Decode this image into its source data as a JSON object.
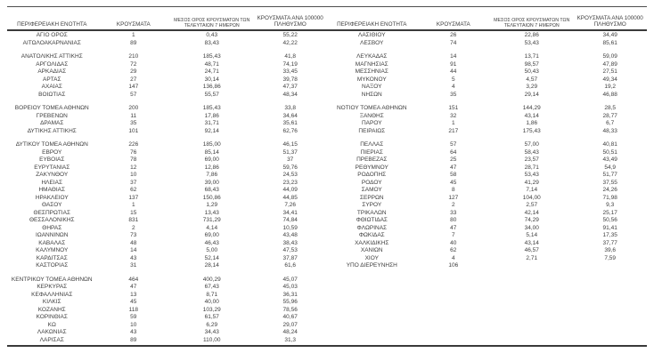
{
  "page": {
    "background": "#ffffff",
    "text_color": "#3d3d3d",
    "rule_color": "#3a3a3a"
  },
  "headers": {
    "region": "ΠΕΡΙΦΕΡΕΙΑΚΗ ΕΝΟΤΗΤΑ",
    "cases": "ΚΡΟΥΣΜΑΤΑ",
    "avg7_line1": "ΜΕΣΟΣ ΟΡΟΣ ΚΡΟΥΣΜΑΤΩΝ ΤΩΝ",
    "avg7_line2": "ΤΕΛΕΥΤΑΙΩΝ 7 ΗΜΕΡΩΝ",
    "per100k_line1": "ΚΡΟΥΣΜΑΤΑ ΑΝΑ 100000",
    "per100k_line2": "ΠΛΗΘΥΣΜΟ"
  },
  "columns": [
    "region",
    "cases",
    "avg7_last7days",
    "per_100000"
  ],
  "left_table": {
    "groups": [
      {
        "rows": [
          [
            "ΑΓΙΟ ΟΡΟΣ",
            "1",
            "0,43",
            "55,22"
          ],
          [
            "ΑΙΤΩΛΟΑΚΑΡΝΑΝΙΑΣ",
            "89",
            "83,43",
            "42,22"
          ]
        ]
      },
      {
        "rows": [
          [
            "ΑΝΑΤΟΛΙΚΗΣ ΑΤΤΙΚΗΣ",
            "210",
            "185,43",
            "41,8"
          ],
          [
            "ΑΡΓΟΛΙΔΑΣ",
            "72",
            "48,71",
            "74,19"
          ],
          [
            "ΑΡΚΑΔΙΑΣ",
            "29",
            "24,71",
            "33,45"
          ],
          [
            "ΑΡΤΑΣ",
            "27",
            "30,14",
            "39,78"
          ],
          [
            "ΑΧΑΪΑΣ",
            "147",
            "136,86",
            "47,37"
          ],
          [
            "ΒΟΙΩΤΙΑΣ",
            "57",
            "55,57",
            "48,34"
          ]
        ]
      },
      {
        "rows": [
          [
            "ΒΟΡΕΙΟΥ ΤΟΜΕΑ ΑΘΗΝΩΝ",
            "200",
            "185,43",
            "33,8"
          ],
          [
            "ΓΡΕΒΕΝΩΝ",
            "11",
            "17,86",
            "34,64"
          ],
          [
            "ΔΡΑΜΑΣ",
            "35",
            "31,71",
            "35,61"
          ],
          [
            "ΔΥΤΙΚΗΣ ΑΤΤΙΚΗΣ",
            "101",
            "92,14",
            "62,76"
          ]
        ]
      },
      {
        "rows": [
          [
            "ΔΥΤΙΚΟΥ ΤΟΜΕΑ ΑΘΗΝΩΝ",
            "226",
            "185,00",
            "46,15"
          ],
          [
            "ΕΒΡΟΥ",
            "76",
            "85,14",
            "51,37"
          ],
          [
            "ΕΥΒΟΙΑΣ",
            "78",
            "69,00",
            "37"
          ],
          [
            "ΕΥΡΥΤΑΝΙΑΣ",
            "12",
            "12,86",
            "59,76"
          ],
          [
            "ΖΑΚΥΝΘΟΥ",
            "10",
            "7,86",
            "24,53"
          ],
          [
            "ΗΛΕΙΑΣ",
            "37",
            "39,00",
            "23,23"
          ],
          [
            "ΗΜΑΘΙΑΣ",
            "62",
            "68,43",
            "44,09"
          ],
          [
            "ΗΡΑΚΛΕΙΟΥ",
            "137",
            "150,86",
            "44,85"
          ],
          [
            "ΘΑΣΟΥ",
            "1",
            "1,29",
            "7,26"
          ],
          [
            "ΘΕΣΠΡΩΤΙΑΣ",
            "15",
            "13,43",
            "34,41"
          ],
          [
            "ΘΕΣΣΑΛΟΝΙΚΗΣ",
            "831",
            "731,29",
            "74,84"
          ],
          [
            "ΘΗΡΑΣ",
            "2",
            "4,14",
            "10,59"
          ],
          [
            "ΙΩΑΝΝΙΝΩΝ",
            "73",
            "69,00",
            "43,48"
          ],
          [
            "ΚΑΒΑΛΑΣ",
            "48",
            "46,43",
            "38,43"
          ],
          [
            "ΚΑΛΥΜΝΟΥ",
            "14",
            "5,00",
            "47,53"
          ],
          [
            "ΚΑΡΔΙΤΣΑΣ",
            "43",
            "52,14",
            "37,87"
          ],
          [
            "ΚΑΣΤΟΡΙΑΣ",
            "31",
            "28,14",
            "61,6"
          ]
        ]
      },
      {
        "rows": [
          [
            "ΚΕΝΤΡΙΚΟΥ ΤΟΜΕΑ ΑΘΗΝΩΝ",
            "464",
            "400,29",
            "45,07"
          ],
          [
            "ΚΕΡΚΥΡΑΣ",
            "47",
            "67,43",
            "45,03"
          ],
          [
            "ΚΕΦΑΛΛΗΝΙΑΣ",
            "13",
            "8,71",
            "36,31"
          ],
          [
            "ΚΙΛΚΙΣ",
            "45",
            "40,00",
            "55,96"
          ],
          [
            "ΚΟΖΑΝΗΣ",
            "118",
            "103,29",
            "78,56"
          ],
          [
            "ΚΟΡΙΝΘΙΑΣ",
            "59",
            "61,57",
            "40,67"
          ],
          [
            "ΚΩ",
            "10",
            "6,29",
            "29,07"
          ],
          [
            "ΛΑΚΩΝΙΑΣ",
            "43",
            "34,43",
            "48,24"
          ],
          [
            "ΛΑΡΙΣΑΣ",
            "89",
            "110,00",
            "31,3"
          ]
        ]
      }
    ]
  },
  "right_table": {
    "groups": [
      {
        "rows": [
          [
            "ΛΑΣΙΘΙΟΥ",
            "26",
            "22,86",
            "34,49"
          ],
          [
            "ΛΕΣΒΟΥ",
            "74",
            "53,43",
            "85,61"
          ]
        ]
      },
      {
        "rows": [
          [
            "ΛΕΥΚΑΔΑΣ",
            "14",
            "13,71",
            "59,09"
          ],
          [
            "ΜΑΓΝΗΣΙΑΣ",
            "91",
            "98,57",
            "47,89"
          ],
          [
            "ΜΕΣΣΗΝΙΑΣ",
            "44",
            "50,43",
            "27,51"
          ],
          [
            "ΜΥΚΟΝΟΥ",
            "5",
            "4,57",
            "49,34"
          ],
          [
            "ΝΑΞΟΥ",
            "4",
            "3,29",
            "19,2"
          ],
          [
            "ΝΗΣΩΝ",
            "35",
            "29,14",
            "46,88"
          ]
        ]
      },
      {
        "rows": [
          [
            "ΝΟΤΙΟΥ ΤΟΜΕΑ ΑΘΗΝΩΝ",
            "151",
            "144,29",
            "28,5"
          ],
          [
            "ΞΑΝΘΗΣ",
            "32",
            "43,14",
            "28,77"
          ],
          [
            "ΠΑΡΟΥ",
            "1",
            "1,86",
            "6,7"
          ],
          [
            "ΠΕΙΡΑΙΩΣ",
            "217",
            "175,43",
            "48,33"
          ]
        ]
      },
      {
        "rows": [
          [
            "ΠΕΛΛΑΣ",
            "57",
            "57,00",
            "40,81"
          ],
          [
            "ΠΙΕΡΙΑΣ",
            "64",
            "58,43",
            "50,51"
          ],
          [
            "ΠΡΕΒΕΖΑΣ",
            "25",
            "23,57",
            "43,49"
          ],
          [
            "ΡΕΘΥΜΝΟΥ",
            "47",
            "28,71",
            "54,9"
          ],
          [
            "ΡΟΔΟΠΗΣ",
            "58",
            "53,43",
            "51,77"
          ],
          [
            "ΡΟΔΟΥ",
            "45",
            "41,29",
            "37,55"
          ],
          [
            "ΣΑΜΟΥ",
            "8",
            "7,14",
            "24,26"
          ],
          [
            "ΣΕΡΡΩΝ",
            "127",
            "104,00",
            "71,98"
          ],
          [
            "ΣΥΡΟΥ",
            "2",
            "2,57",
            "9,3"
          ],
          [
            "ΤΡΙΚΑΛΩΝ",
            "33",
            "42,14",
            "25,17"
          ],
          [
            "ΦΘΙΩΤΙΔΑΣ",
            "80",
            "74,29",
            "50,56"
          ],
          [
            "ΦΛΩΡΙΝΑΣ",
            "47",
            "34,00",
            "91,41"
          ],
          [
            "ΦΩΚΙΔΑΣ",
            "7",
            "5,14",
            "17,35"
          ],
          [
            "ΧΑΛΚΙΔΙΚΗΣ",
            "40",
            "43,14",
            "37,77"
          ],
          [
            "ΧΑΝΙΩΝ",
            "62",
            "46,57",
            "39,6"
          ],
          [
            "ΧΙΟΥ",
            "4",
            "2,71",
            "7,59"
          ],
          [
            "ΥΠΟ ΔΙΕΡΕΥΝΗΣΗ",
            "106",
            "",
            ""
          ]
        ]
      }
    ]
  }
}
